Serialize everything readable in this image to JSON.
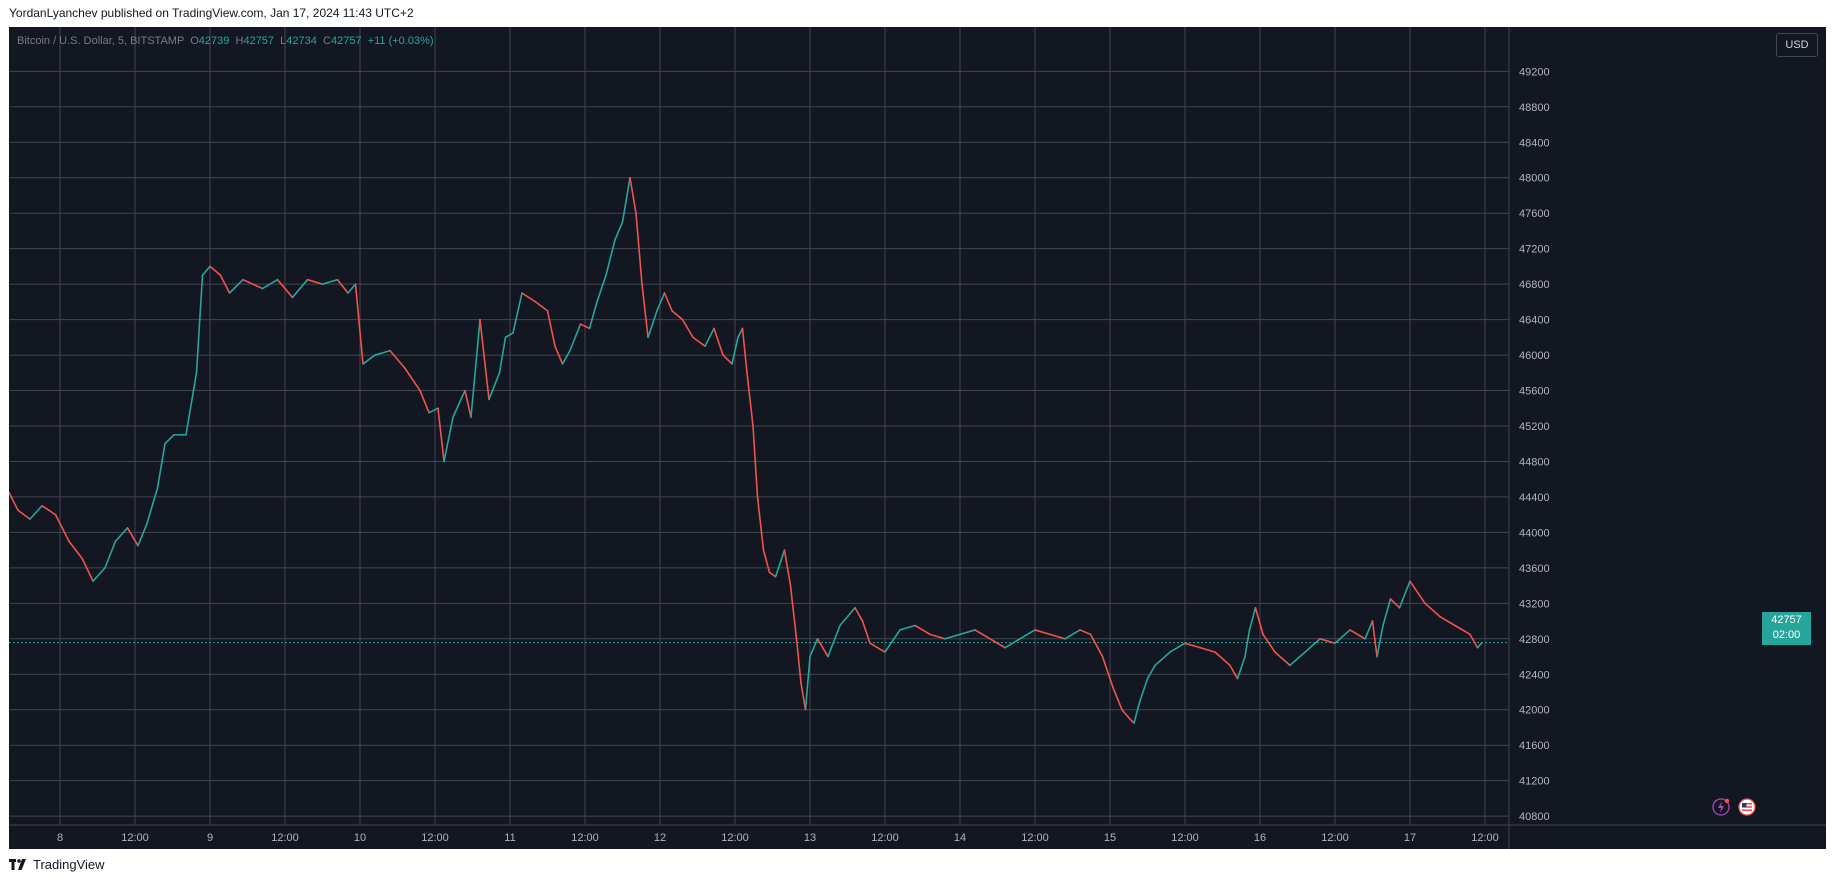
{
  "header": {
    "text": "YordanLyanchev published on TradingView.com, Jan 17, 2024 11:43 UTC+2"
  },
  "legend": {
    "symbol": "Bitcoin / U.S. Dollar, 5, BITSTAMP",
    "o_label": "O",
    "o": "42739",
    "h_label": "H",
    "h": "42757",
    "l_label": "L",
    "l": "42734",
    "c_label": "C",
    "c": "42757",
    "change": "+11 (+0.03%)"
  },
  "currency_button": "USD",
  "price_tag": {
    "price": "42757",
    "countdown": "02:00"
  },
  "footer": {
    "logo_text": "TradingView"
  },
  "colors": {
    "background": "#131722",
    "grid": "#434651",
    "up": "#26a69a",
    "down": "#ef5350",
    "axis_text": "#b2b5be",
    "last_price": "#26a69a"
  },
  "chart_data": {
    "type": "line",
    "title": "Bitcoin / U.S. Dollar, 5, BITSTAMP",
    "xlabel": "",
    "ylabel": "",
    "ylim": [
      40700,
      49700
    ],
    "x_unit": "days (Jan 8 00:00 = 8, Jan 17 12:00 = 17.5)",
    "xlim": [
      7.66,
      17.66
    ],
    "y_ticks": [
      40800,
      41200,
      41600,
      42000,
      42400,
      42800,
      43200,
      43600,
      44000,
      44400,
      44800,
      45200,
      45600,
      46000,
      46400,
      46800,
      47200,
      47600,
      48000,
      48400,
      48800,
      49200
    ],
    "x_tick_labels": [
      {
        "x": 8.0,
        "label": "8"
      },
      {
        "x": 8.5,
        "label": "12:00"
      },
      {
        "x": 9.0,
        "label": "9"
      },
      {
        "x": 9.5,
        "label": "12:00"
      },
      {
        "x": 10.0,
        "label": "10"
      },
      {
        "x": 10.5,
        "label": "12:00"
      },
      {
        "x": 11.0,
        "label": "11"
      },
      {
        "x": 11.5,
        "label": "12:00"
      },
      {
        "x": 12.0,
        "label": "12"
      },
      {
        "x": 12.5,
        "label": "12:00"
      },
      {
        "x": 13.0,
        "label": "13"
      },
      {
        "x": 13.5,
        "label": "12:00"
      },
      {
        "x": 14.0,
        "label": "14"
      },
      {
        "x": 14.5,
        "label": "12:00"
      },
      {
        "x": 15.0,
        "label": "15"
      },
      {
        "x": 15.5,
        "label": "12:00"
      },
      {
        "x": 16.0,
        "label": "16"
      },
      {
        "x": 16.5,
        "label": "12:00"
      },
      {
        "x": 17.0,
        "label": "17"
      },
      {
        "x": 17.5,
        "label": "12:00"
      }
    ],
    "series": [
      {
        "points": [
          [
            7.66,
            44450
          ],
          [
            7.72,
            44250
          ],
          [
            7.8,
            44150
          ],
          [
            7.88,
            44300
          ],
          [
            7.97,
            44200
          ],
          [
            8.06,
            43900
          ],
          [
            8.15,
            43700
          ],
          [
            8.22,
            43450
          ],
          [
            8.3,
            43600
          ],
          [
            8.37,
            43900
          ],
          [
            8.45,
            44050
          ],
          [
            8.52,
            43850
          ],
          [
            8.58,
            44100
          ],
          [
            8.65,
            44500
          ],
          [
            8.7,
            45000
          ],
          [
            8.76,
            45100
          ],
          [
            8.84,
            45100
          ],
          [
            8.91,
            45800
          ],
          [
            8.95,
            46900
          ],
          [
            9.0,
            47000
          ],
          [
            9.07,
            46900
          ],
          [
            9.13,
            46700
          ],
          [
            9.22,
            46850
          ],
          [
            9.35,
            46750
          ],
          [
            9.45,
            46850
          ],
          [
            9.55,
            46650
          ],
          [
            9.65,
            46850
          ],
          [
            9.75,
            46800
          ],
          [
            9.85,
            46850
          ],
          [
            9.92,
            46700
          ],
          [
            9.97,
            46800
          ],
          [
            10.02,
            45900
          ],
          [
            10.1,
            46000
          ],
          [
            10.2,
            46050
          ],
          [
            10.3,
            45850
          ],
          [
            10.4,
            45600
          ],
          [
            10.46,
            45350
          ],
          [
            10.52,
            45400
          ],
          [
            10.56,
            44800
          ],
          [
            10.62,
            45300
          ],
          [
            10.7,
            45600
          ],
          [
            10.74,
            45300
          ],
          [
            10.8,
            46400
          ],
          [
            10.86,
            45500
          ],
          [
            10.93,
            45800
          ],
          [
            10.97,
            46200
          ],
          [
            11.02,
            46250
          ],
          [
            11.08,
            46700
          ],
          [
            11.17,
            46600
          ],
          [
            11.25,
            46500
          ],
          [
            11.3,
            46100
          ],
          [
            11.35,
            45900
          ],
          [
            11.4,
            46050
          ],
          [
            11.47,
            46350
          ],
          [
            11.53,
            46300
          ],
          [
            11.58,
            46600
          ],
          [
            11.64,
            46900
          ],
          [
            11.7,
            47300
          ],
          [
            11.75,
            47500
          ],
          [
            11.8,
            48000
          ],
          [
            11.84,
            47600
          ],
          [
            11.88,
            46800
          ],
          [
            11.92,
            46200
          ],
          [
            11.98,
            46500
          ],
          [
            12.03,
            46700
          ],
          [
            12.08,
            46500
          ],
          [
            12.15,
            46400
          ],
          [
            12.22,
            46200
          ],
          [
            12.3,
            46100
          ],
          [
            12.36,
            46300
          ],
          [
            12.42,
            46000
          ],
          [
            12.48,
            45900
          ],
          [
            12.52,
            46200
          ],
          [
            12.55,
            46300
          ],
          [
            12.58,
            45800
          ],
          [
            12.62,
            45200
          ],
          [
            12.65,
            44400
          ],
          [
            12.69,
            43800
          ],
          [
            12.73,
            43550
          ],
          [
            12.77,
            43500
          ],
          [
            12.83,
            43800
          ],
          [
            12.87,
            43400
          ],
          [
            12.91,
            42800
          ],
          [
            12.94,
            42300
          ],
          [
            12.97,
            42000
          ],
          [
            13.0,
            42600
          ],
          [
            13.05,
            42800
          ],
          [
            13.12,
            42600
          ],
          [
            13.2,
            42950
          ],
          [
            13.3,
            43150
          ],
          [
            13.35,
            43000
          ],
          [
            13.4,
            42750
          ],
          [
            13.5,
            42650
          ],
          [
            13.6,
            42900
          ],
          [
            13.7,
            42950
          ],
          [
            13.8,
            42850
          ],
          [
            13.9,
            42800
          ],
          [
            14.0,
            42850
          ],
          [
            14.1,
            42900
          ],
          [
            14.2,
            42800
          ],
          [
            14.3,
            42700
          ],
          [
            14.4,
            42800
          ],
          [
            14.5,
            42900
          ],
          [
            14.6,
            42850
          ],
          [
            14.7,
            42800
          ],
          [
            14.8,
            42900
          ],
          [
            14.87,
            42850
          ],
          [
            14.95,
            42600
          ],
          [
            15.02,
            42250
          ],
          [
            15.08,
            42000
          ],
          [
            15.13,
            41900
          ],
          [
            15.16,
            41850
          ],
          [
            15.2,
            42100
          ],
          [
            15.25,
            42350
          ],
          [
            15.3,
            42500
          ],
          [
            15.4,
            42650
          ],
          [
            15.5,
            42750
          ],
          [
            15.6,
            42700
          ],
          [
            15.7,
            42650
          ],
          [
            15.8,
            42500
          ],
          [
            15.85,
            42350
          ],
          [
            15.9,
            42600
          ],
          [
            15.93,
            42900
          ],
          [
            15.97,
            43150
          ],
          [
            16.02,
            42850
          ],
          [
            16.1,
            42650
          ],
          [
            16.2,
            42500
          ],
          [
            16.3,
            42650
          ],
          [
            16.4,
            42800
          ],
          [
            16.5,
            42750
          ],
          [
            16.6,
            42900
          ],
          [
            16.7,
            42800
          ],
          [
            16.75,
            43000
          ],
          [
            16.78,
            42600
          ],
          [
            16.82,
            42950
          ],
          [
            16.87,
            43250
          ],
          [
            16.93,
            43150
          ],
          [
            17.0,
            43450
          ],
          [
            17.1,
            43200
          ],
          [
            17.2,
            43050
          ],
          [
            17.3,
            42950
          ],
          [
            17.4,
            42850
          ],
          [
            17.45,
            42700
          ],
          [
            17.48,
            42757
          ]
        ]
      }
    ],
    "last_price": 42757
  }
}
